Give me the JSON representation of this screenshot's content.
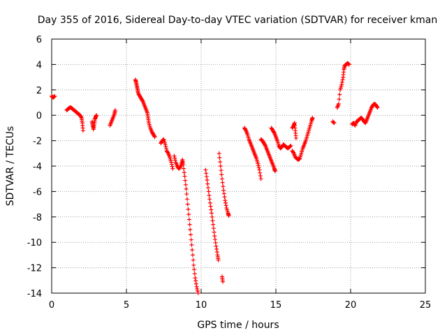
{
  "chart_data": {
    "type": "scatter",
    "title": "Day 355 of 2016, Sidereal Day-to-day VTEC variation (SDTVAR) for receiver kman",
    "xlabel": "GPS time / hours",
    "ylabel": "SDTVAR / TECUs",
    "xlim": [
      0,
      25
    ],
    "ylim": [
      -14,
      6
    ],
    "xticks": [
      0,
      5,
      10,
      15,
      20,
      25
    ],
    "yticks": [
      -14,
      -12,
      -10,
      -8,
      -6,
      -4,
      -2,
      0,
      2,
      4,
      6
    ],
    "grid": true,
    "marker": "+",
    "color": "#ff0000",
    "series": [
      {
        "name": "SDTVAR",
        "segments": [
          [
            [
              0.0,
              1.5
            ],
            [
              0.1,
              1.4
            ],
            [
              0.2,
              1.5
            ]
          ],
          [
            [
              1.0,
              0.4
            ],
            [
              1.1,
              0.5
            ],
            [
              1.2,
              0.6
            ],
            [
              1.3,
              0.6
            ],
            [
              1.4,
              0.5
            ],
            [
              1.5,
              0.4
            ],
            [
              1.6,
              0.3
            ],
            [
              1.7,
              0.2
            ],
            [
              1.8,
              0.1
            ],
            [
              1.9,
              0.0
            ],
            [
              2.0,
              -0.2
            ],
            [
              2.05,
              -0.6
            ],
            [
              2.1,
              -1.2
            ]
          ],
          [
            [
              2.7,
              -0.5
            ],
            [
              2.75,
              -0.8
            ],
            [
              2.8,
              -1.1
            ],
            [
              2.85,
              -0.7
            ],
            [
              2.9,
              -0.3
            ],
            [
              2.95,
              -0.1
            ],
            [
              3.0,
              0.0
            ]
          ],
          [
            [
              3.9,
              -0.8
            ],
            [
              4.0,
              -0.5
            ],
            [
              4.1,
              -0.2
            ],
            [
              4.2,
              0.1
            ],
            [
              4.25,
              0.4
            ]
          ],
          [
            [
              5.6,
              2.8
            ],
            [
              5.65,
              2.6
            ],
            [
              5.7,
              2.3
            ],
            [
              5.75,
              2.0
            ],
            [
              5.8,
              1.7
            ],
            [
              5.9,
              1.5
            ],
            [
              6.0,
              1.3
            ],
            [
              6.1,
              1.1
            ],
            [
              6.2,
              0.8
            ],
            [
              6.3,
              0.5
            ],
            [
              6.4,
              0.2
            ],
            [
              6.45,
              -0.2
            ],
            [
              6.5,
              -0.6
            ],
            [
              6.6,
              -1.0
            ],
            [
              6.7,
              -1.3
            ],
            [
              6.8,
              -1.5
            ],
            [
              6.9,
              -1.7
            ]
          ],
          [
            [
              7.3,
              -2.2
            ],
            [
              7.4,
              -2.0
            ],
            [
              7.5,
              -1.9
            ],
            [
              7.6,
              -2.3
            ],
            [
              7.7,
              -2.8
            ],
            [
              7.8,
              -3.0
            ],
            [
              7.9,
              -3.3
            ],
            [
              8.0,
              -3.7
            ],
            [
              8.1,
              -4.2
            ]
          ],
          [
            [
              8.2,
              -3.2
            ],
            [
              8.3,
              -3.7
            ],
            [
              8.4,
              -4.0
            ],
            [
              8.5,
              -4.2
            ],
            [
              8.6,
              -4.1
            ],
            [
              8.7,
              -3.8
            ],
            [
              8.75,
              -3.5
            ],
            [
              8.8,
              -3.9
            ],
            [
              8.9,
              -4.8
            ],
            [
              9.0,
              -5.8
            ],
            [
              9.1,
              -7.0
            ],
            [
              9.2,
              -8.2
            ],
            [
              9.3,
              -9.4
            ],
            [
              9.4,
              -10.6
            ],
            [
              9.5,
              -11.8
            ],
            [
              9.6,
              -12.8
            ],
            [
              9.7,
              -13.5
            ],
            [
              9.8,
              -14.0
            ]
          ],
          [
            [
              10.3,
              -4.3
            ],
            [
              10.4,
              -5.1
            ],
            [
              10.5,
              -6.0
            ],
            [
              10.6,
              -6.9
            ],
            [
              10.7,
              -7.7
            ],
            [
              10.8,
              -8.6
            ],
            [
              10.9,
              -9.5
            ],
            [
              11.0,
              -10.3
            ],
            [
              11.1,
              -11.0
            ],
            [
              11.15,
              -11.4
            ]
          ],
          [
            [
              11.2,
              -3.0
            ],
            [
              11.3,
              -4.0
            ],
            [
              11.4,
              -5.0
            ],
            [
              11.5,
              -5.9
            ],
            [
              11.6,
              -6.7
            ],
            [
              11.7,
              -7.3
            ],
            [
              11.8,
              -7.7
            ],
            [
              11.85,
              -7.9
            ]
          ],
          [
            [
              11.4,
              -12.7
            ],
            [
              11.45,
              -13.1
            ]
          ],
          [
            [
              12.9,
              -1.0
            ],
            [
              13.0,
              -1.2
            ],
            [
              13.1,
              -1.5
            ],
            [
              13.2,
              -1.9
            ],
            [
              13.3,
              -2.2
            ],
            [
              13.4,
              -2.5
            ],
            [
              13.5,
              -2.8
            ],
            [
              13.6,
              -3.1
            ],
            [
              13.7,
              -3.4
            ],
            [
              13.8,
              -3.8
            ],
            [
              13.9,
              -4.3
            ],
            [
              14.0,
              -5.0
            ]
          ],
          [
            [
              14.0,
              -1.9
            ],
            [
              14.1,
              -2.0
            ],
            [
              14.2,
              -2.2
            ],
            [
              14.3,
              -2.4
            ],
            [
              14.4,
              -2.7
            ],
            [
              14.5,
              -3.0
            ],
            [
              14.6,
              -3.3
            ],
            [
              14.7,
              -3.6
            ],
            [
              14.8,
              -3.9
            ],
            [
              14.9,
              -4.2
            ],
            [
              14.95,
              -4.4
            ]
          ],
          [
            [
              14.7,
              -1.0
            ],
            [
              14.8,
              -1.2
            ],
            [
              14.9,
              -1.4
            ],
            [
              15.0,
              -1.7
            ],
            [
              15.1,
              -2.0
            ],
            [
              15.2,
              -2.4
            ],
            [
              15.3,
              -2.6
            ],
            [
              15.4,
              -2.5
            ],
            [
              15.5,
              -2.3
            ],
            [
              15.6,
              -2.4
            ],
            [
              15.7,
              -2.5
            ],
            [
              15.8,
              -2.6
            ],
            [
              15.9,
              -2.5
            ],
            [
              16.0,
              -2.4
            ]
          ],
          [
            [
              16.1,
              -1.0
            ],
            [
              16.2,
              -0.8
            ],
            [
              16.25,
              -0.6
            ],
            [
              16.3,
              -1.2
            ],
            [
              16.35,
              -1.8
            ]
          ],
          [
            [
              16.1,
              -2.8
            ],
            [
              16.2,
              -3.0
            ],
            [
              16.3,
              -3.3
            ],
            [
              16.4,
              -3.4
            ],
            [
              16.5,
              -3.5
            ],
            [
              16.6,
              -3.4
            ],
            [
              16.7,
              -3.0
            ],
            [
              16.8,
              -2.6
            ],
            [
              16.9,
              -2.3
            ],
            [
              17.0,
              -2.0
            ],
            [
              17.1,
              -1.6
            ],
            [
              17.2,
              -1.2
            ],
            [
              17.3,
              -0.8
            ],
            [
              17.4,
              -0.4
            ],
            [
              17.45,
              -0.2
            ]
          ],
          [
            [
              18.8,
              -0.5
            ],
            [
              18.9,
              -0.6
            ]
          ],
          [
            [
              19.1,
              0.6
            ],
            [
              19.2,
              0.9
            ],
            [
              19.3,
              2.0
            ],
            [
              19.4,
              2.4
            ],
            [
              19.5,
              3.0
            ],
            [
              19.55,
              3.6
            ],
            [
              19.6,
              3.9
            ],
            [
              19.7,
              4.0
            ],
            [
              19.8,
              4.1
            ],
            [
              19.9,
              4.0
            ]
          ],
          [
            [
              20.1,
              -0.7
            ],
            [
              20.2,
              -0.6
            ],
            [
              20.3,
              -0.8
            ],
            [
              20.4,
              -0.5
            ],
            [
              20.5,
              -0.4
            ],
            [
              20.6,
              -0.3
            ],
            [
              20.7,
              -0.2
            ],
            [
              20.8,
              -0.3
            ],
            [
              20.9,
              -0.5
            ],
            [
              21.0,
              -0.6
            ],
            [
              21.1,
              -0.3
            ],
            [
              21.2,
              0.0
            ],
            [
              21.3,
              0.3
            ],
            [
              21.4,
              0.6
            ],
            [
              21.5,
              0.8
            ],
            [
              21.6,
              0.9
            ],
            [
              21.7,
              0.8
            ],
            [
              21.8,
              0.6
            ]
          ]
        ]
      }
    ]
  }
}
